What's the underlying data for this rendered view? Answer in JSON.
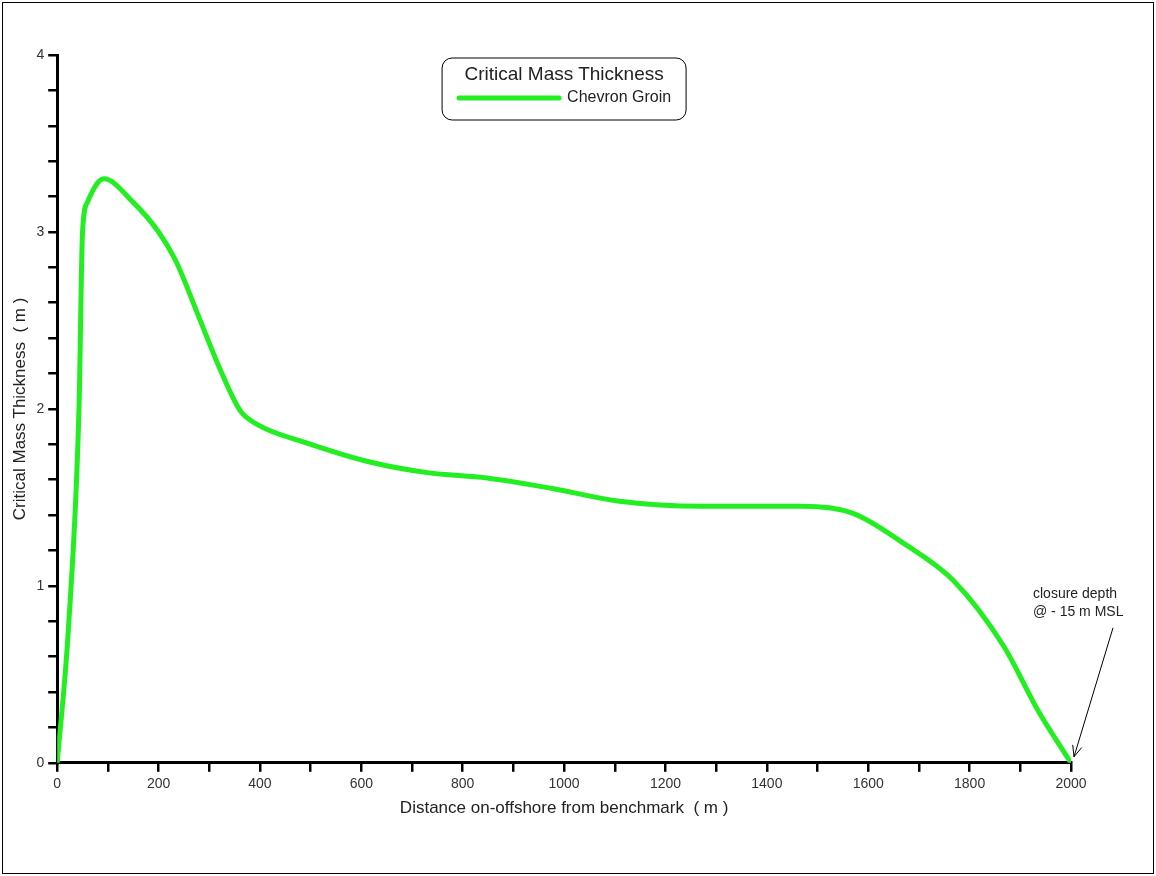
{
  "chart_data": {
    "type": "line",
    "xlabel": "Distance on-offshore from benchmark  ( m )",
    "ylabel": "Critical Mass Thickness  ( m )",
    "legend_title": "Critical Mass Thickness",
    "legend": "top",
    "grid": false,
    "marker": "none",
    "line_style": "solid",
    "xlim": [
      0,
      2000
    ],
    "xticks": [
      0,
      {
        "value": 100,
        "label": null
      },
      200,
      {
        "value": 300,
        "label": null
      },
      400,
      {
        "value": 500,
        "label": null
      },
      600,
      {
        "value": 700,
        "label": null
      },
      800,
      {
        "value": 900,
        "label": null
      },
      1000,
      {
        "value": 1100,
        "label": null
      },
      1200,
      {
        "value": 1300,
        "label": null
      },
      1400,
      {
        "value": 1500,
        "label": null
      },
      1600,
      {
        "value": 1700,
        "label": null
      },
      1800,
      {
        "value": 1900,
        "label": null
      },
      2000
    ],
    "ylim": [
      0,
      4
    ],
    "yticks": [
      0,
      {
        "value": 0.2,
        "label": null
      },
      {
        "value": 0.4,
        "label": null
      },
      {
        "value": 0.6,
        "label": null
      },
      {
        "value": 0.8,
        "label": null
      },
      1,
      {
        "value": 1.2,
        "label": null
      },
      {
        "value": 1.4,
        "label": null
      },
      {
        "value": 1.6,
        "label": null
      },
      {
        "value": 1.8,
        "label": null
      },
      2,
      {
        "value": 2.2,
        "label": null
      },
      {
        "value": 2.4,
        "label": null
      },
      {
        "value": 2.6,
        "label": null
      },
      {
        "value": 2.8,
        "label": null
      },
      3,
      {
        "value": 3.2,
        "label": null
      },
      {
        "value": 3.4,
        "label": null
      },
      {
        "value": 3.6,
        "label": null
      },
      {
        "value": 3.8,
        "label": null
      },
      4
    ],
    "annotations": [
      {
        "text": "closure depth\n@ - 15 m MSL",
        "x": 2000,
        "y": 0
      }
    ],
    "series": [
      {
        "name": "Chevron Groin",
        "color": "#22ee22",
        "x": [
          0,
          22,
          43,
          50,
          60,
          92,
          149,
          200,
          235,
          278,
          319,
          361,
          396,
          490,
          617,
          730,
          848,
          977,
          1105,
          1273,
          1471,
          1570,
          1670,
          1768,
          1867,
          1936,
          2000
        ],
        "values": [
          0,
          0.75,
          2.0,
          3.0,
          3.17,
          3.3,
          3.17,
          3.0,
          2.83,
          2.53,
          2.24,
          1.99,
          1.91,
          1.81,
          1.7,
          1.64,
          1.61,
          1.55,
          1.48,
          1.45,
          1.45,
          1.41,
          1.24,
          1.03,
          0.66,
          0.29,
          0
        ]
      }
    ]
  }
}
